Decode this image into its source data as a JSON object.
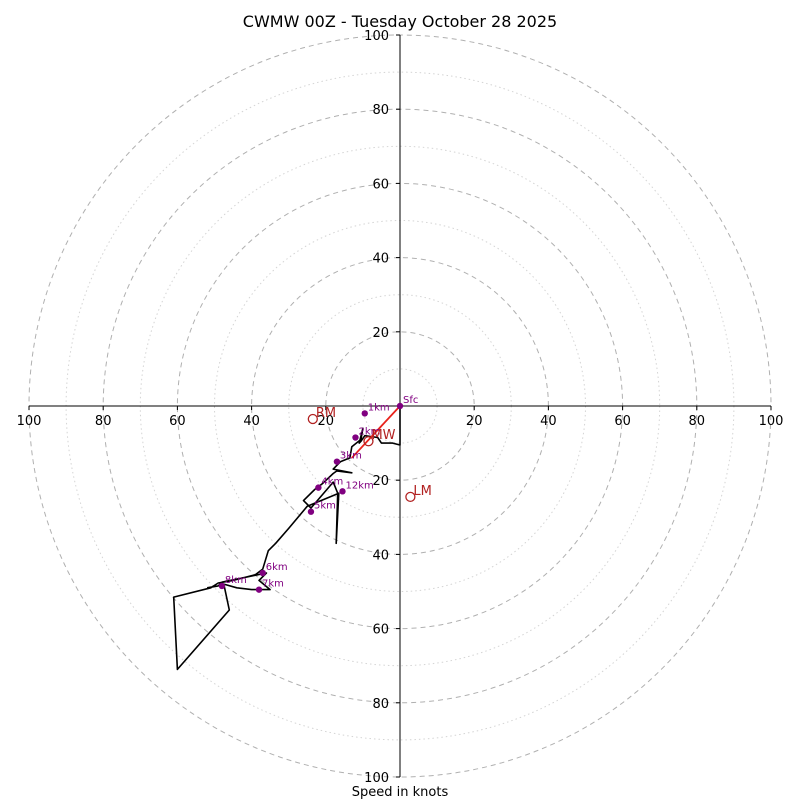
{
  "chart_data": {
    "type": "hodograph",
    "title": "CWMW 00Z - Tuesday October 28 2025",
    "xlabel": "Speed in knots",
    "ylabel": "",
    "range_knots": [
      -100,
      100
    ],
    "ring_major_knots": [
      20,
      40,
      60,
      80,
      100
    ],
    "ring_minor_knots": [
      10,
      30,
      50,
      70,
      90
    ],
    "tick_values": [
      100,
      80,
      60,
      40,
      20
    ],
    "x_tick_labels": [
      "100",
      "80",
      "60",
      "40",
      "20",
      "20",
      "40",
      "60",
      "80",
      "100"
    ],
    "y_tick_labels": [
      "100",
      "80",
      "60",
      "40",
      "20",
      "20",
      "40",
      "60",
      "80",
      "100"
    ],
    "hodograph_trace": [
      [
        0,
        0
      ],
      [
        0,
        -10.5
      ],
      [
        -2,
        -10
      ],
      [
        -5,
        -10
      ],
      [
        -6,
        -8.5
      ],
      [
        -9.5,
        -8
      ],
      [
        -10.5,
        -9.5
      ],
      [
        -11,
        -10
      ],
      [
        -10,
        -6
      ],
      [
        -10.5,
        -9
      ],
      [
        -13,
        -11
      ],
      [
        -13.5,
        -14
      ],
      [
        -16,
        -15
      ],
      [
        -18,
        -17
      ],
      [
        -13,
        -18
      ],
      [
        -17,
        -17.5
      ],
      [
        -18,
        -18.2
      ],
      [
        -21,
        -21
      ],
      [
        -23,
        -22.5
      ],
      [
        -26,
        -25.5
      ],
      [
        -24,
        -27.5
      ],
      [
        -18,
        -20.5
      ],
      [
        -16.8,
        -23.5
      ],
      [
        -17.2,
        -37
      ],
      [
        -16.5,
        -23.5
      ],
      [
        -25,
        -27
      ],
      [
        -30,
        -33
      ],
      [
        -33.5,
        -37
      ],
      [
        -35.5,
        -39
      ],
      [
        -37,
        -44
      ],
      [
        -39,
        -45.5
      ],
      [
        -45,
        -47
      ],
      [
        -49,
        -47.7
      ],
      [
        -51,
        -49
      ],
      [
        -61,
        -51.5
      ],
      [
        -60,
        -71
      ],
      [
        -46,
        -55
      ],
      [
        -47.5,
        -48
      ],
      [
        -44,
        -49
      ],
      [
        -40,
        -49.5
      ],
      [
        -35,
        -49.5
      ],
      [
        -38,
        -47
      ],
      [
        -36,
        -45
      ],
      [
        -48,
        -47.5
      ],
      [
        -49,
        -48.5
      ],
      [
        -52,
        -49
      ]
    ],
    "height_labels": [
      {
        "label": "Sfc",
        "u": 0,
        "v": 0
      },
      {
        "label": "1km",
        "u": -9.5,
        "v": -2
      },
      {
        "label": "2km",
        "u": -12,
        "v": -8.5
      },
      {
        "label": "3km",
        "u": -17,
        "v": -15
      },
      {
        "label": "4km",
        "u": -22,
        "v": -22
      },
      {
        "label": "5km",
        "u": -24,
        "v": -28.5
      },
      {
        "label": "6km",
        "u": -37,
        "v": -45
      },
      {
        "label": "7km",
        "u": -38,
        "v": -49.5
      },
      {
        "label": "8km",
        "u": -48,
        "v": -48.5
      },
      {
        "label": "12km",
        "u": -15.5,
        "v": -23
      }
    ],
    "shear_vector": {
      "from": [
        0,
        0
      ],
      "to": [
        -13,
        -14
      ]
    },
    "storm_motion": [
      {
        "label": "RM",
        "u": -23.5,
        "v": -3.5
      },
      {
        "label": "MW",
        "u": -8.5,
        "v": -9.5
      },
      {
        "label": "LM",
        "u": 2.8,
        "v": -24.5
      }
    ],
    "colors": {
      "trace": "#000000",
      "height_points": "#800080",
      "shear": "#e8221b",
      "storm_motion": "#b22222",
      "grid": "#b0b0b0"
    }
  }
}
